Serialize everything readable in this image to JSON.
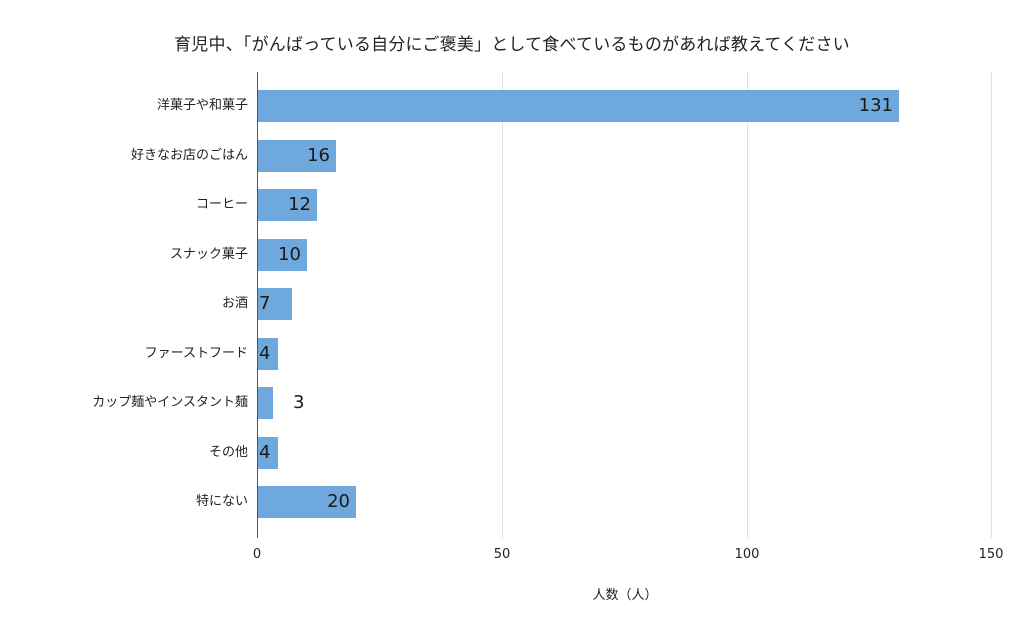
{
  "chart_data": {
    "type": "bar",
    "orientation": "horizontal",
    "title": "育児中、「がんばっている自分にご褒美」として食べているものがあれば教えてください",
    "xlabel": "人数（人）",
    "ylabel": "",
    "categories": [
      "洋菓子や和菓子",
      "好きなお店のごはん",
      "コーヒー",
      "スナック菓子",
      "お酒",
      "ファーストフード",
      "カップ麺やインスタント麺",
      "その他",
      "特にない"
    ],
    "values": [
      131,
      16,
      12,
      10,
      7,
      4,
      3,
      4,
      20
    ],
    "value_labels": [
      "131",
      "16",
      "12",
      "10",
      "7",
      "4",
      "3",
      "4",
      "20"
    ],
    "xlim": [
      0,
      150
    ],
    "x_ticks": [
      "0",
      "50",
      "100",
      "150"
    ],
    "grid": "vertical",
    "legend": "none",
    "bar_color": "#6fa8dc"
  }
}
